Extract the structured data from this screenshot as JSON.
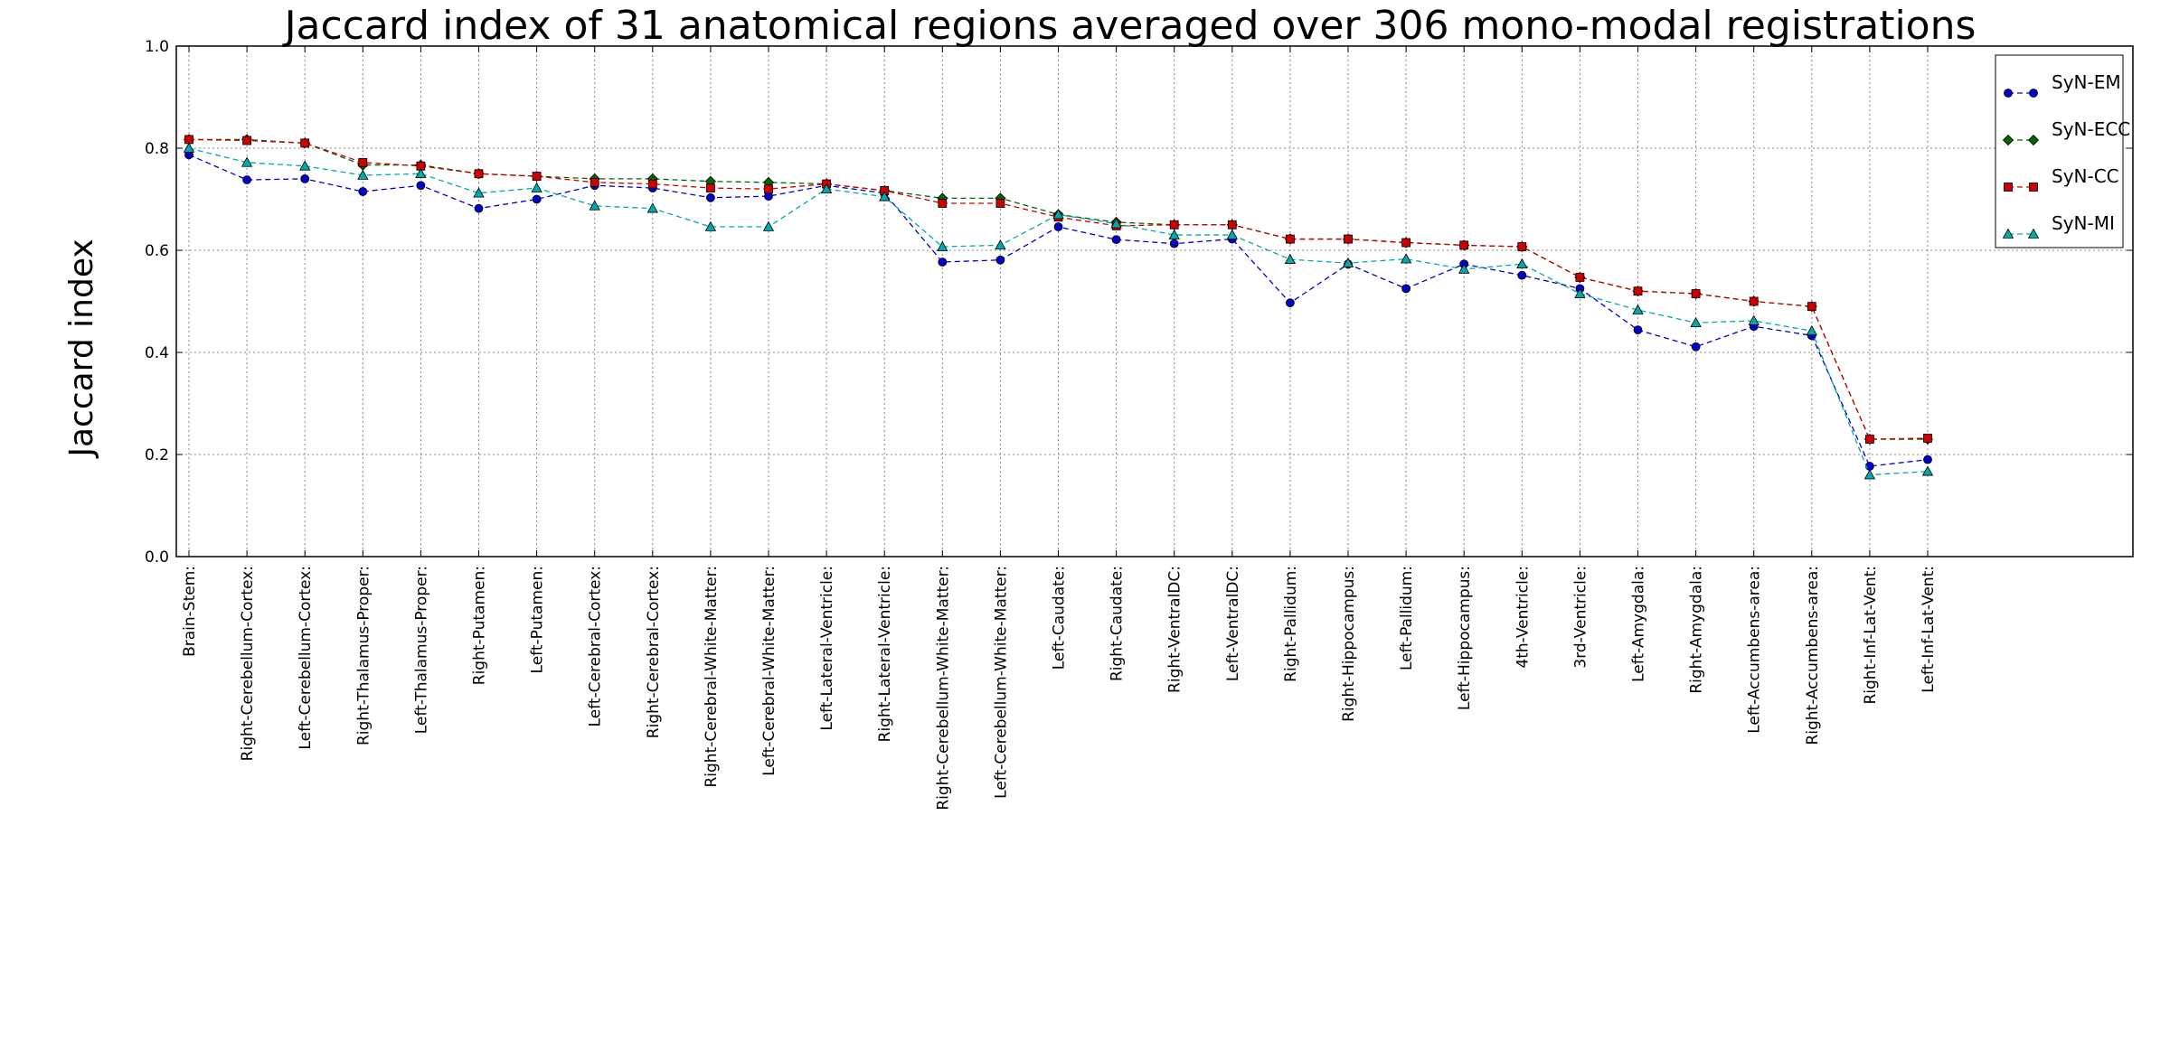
{
  "chart_data": {
    "type": "line",
    "title": "Jaccard index of 31 anatomical regions averaged over 306 mono-modal registrations",
    "xlabel": "",
    "ylabel": "Jaccard index",
    "ylim": [
      0.0,
      1.0
    ],
    "yticks": [
      "0.0",
      "0.2",
      "0.4",
      "0.6",
      "0.8",
      "1.0"
    ],
    "grid": true,
    "legend_position": "top-right",
    "categories": [
      "Brain-Stem:",
      "Right-Cerebellum-Cortex:",
      "Left-Cerebellum-Cortex:",
      "Right-Thalamus-Proper:",
      "Left-Thalamus-Proper:",
      "Right-Putamen:",
      "Left-Putamen:",
      "Left-Cerebral-Cortex:",
      "Right-Cerebral-Cortex:",
      "Right-Cerebral-White-Matter:",
      "Left-Cerebral-White-Matter:",
      "Left-Lateral-Ventricle:",
      "Right-Lateral-Ventricle:",
      "Right-Cerebellum-White-Matter:",
      "Left-Cerebellum-White-Matter:",
      "Left-Caudate:",
      "Right-Caudate:",
      "Right-VentralDC:",
      "Left-VentralDC:",
      "Right-Pallidum:",
      "Right-Hippocampus:",
      "Left-Pallidum:",
      "Left-Hippocampus:",
      "4th-Ventricle:",
      "3rd-Ventricle:",
      "Left-Amygdala:",
      "Right-Amygdala:",
      "Left-Accumbens-area:",
      "Right-Accumbens-area:",
      "Right-Inf-Lat-Vent:",
      "Left-Inf-Lat-Vent:"
    ],
    "series": [
      {
        "name": "SyN-EM",
        "color": "#0000cc",
        "marker": "circle",
        "values": [
          0.787,
          0.738,
          0.74,
          0.715,
          0.727,
          0.682,
          0.7,
          0.727,
          0.722,
          0.703,
          0.706,
          0.727,
          0.712,
          0.577,
          0.581,
          0.646,
          0.621,
          0.613,
          0.622,
          0.497,
          0.573,
          0.525,
          0.573,
          0.551,
          0.525,
          0.444,
          0.411,
          0.451,
          0.433,
          0.177,
          0.19
        ]
      },
      {
        "name": "SyN-ECC",
        "color": "#006600",
        "marker": "diamond",
        "values": [
          0.817,
          0.817,
          0.81,
          0.767,
          0.767,
          0.75,
          0.745,
          0.74,
          0.74,
          0.735,
          0.733,
          0.73,
          0.717,
          0.702,
          0.702,
          0.67,
          0.655,
          0.65,
          0.65,
          0.622,
          0.622,
          0.615,
          0.61,
          0.607,
          0.547,
          0.52,
          0.515,
          0.5,
          0.49,
          0.23,
          0.23
        ]
      },
      {
        "name": "SyN-CC",
        "color": "#cc0000",
        "marker": "square",
        "values": [
          0.817,
          0.815,
          0.81,
          0.772,
          0.765,
          0.75,
          0.745,
          0.733,
          0.73,
          0.722,
          0.72,
          0.73,
          0.717,
          0.692,
          0.692,
          0.665,
          0.648,
          0.65,
          0.65,
          0.622,
          0.622,
          0.615,
          0.61,
          0.607,
          0.547,
          0.52,
          0.515,
          0.5,
          0.49,
          0.23,
          0.232
        ]
      },
      {
        "name": "SyN-MI",
        "color": "#00aaaa",
        "marker": "triangle",
        "values": [
          0.8,
          0.772,
          0.765,
          0.747,
          0.75,
          0.712,
          0.722,
          0.687,
          0.682,
          0.646,
          0.646,
          0.72,
          0.705,
          0.607,
          0.61,
          0.67,
          0.652,
          0.63,
          0.63,
          0.582,
          0.575,
          0.583,
          0.563,
          0.573,
          0.515,
          0.483,
          0.458,
          0.462,
          0.442,
          0.16,
          0.167
        ]
      }
    ]
  }
}
